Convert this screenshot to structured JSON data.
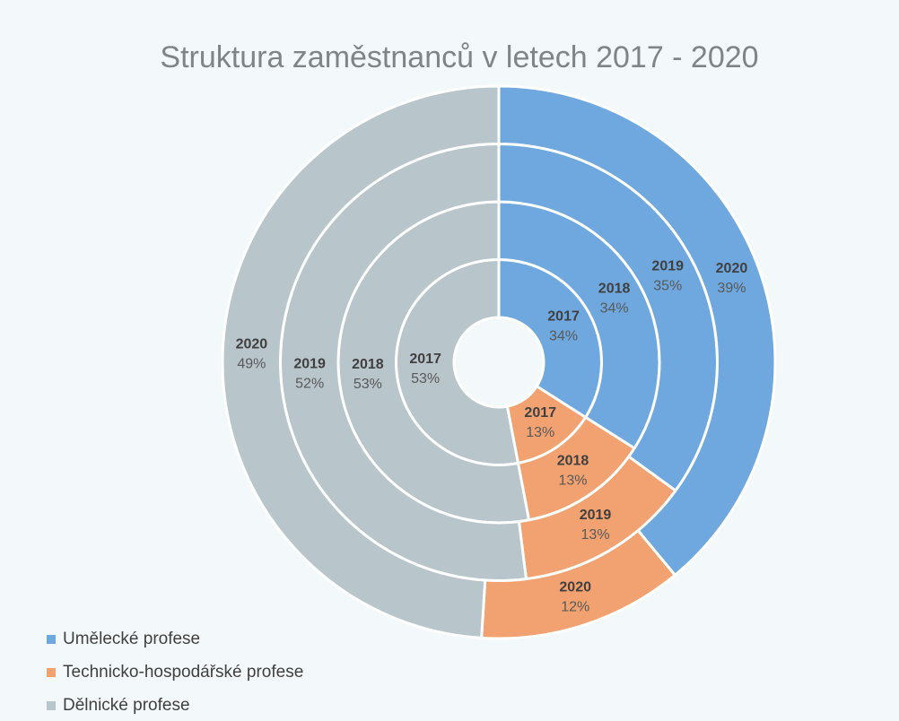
{
  "chart_data": {
    "type": "multi-ring-donut",
    "title": "Struktura zaměstnanců v letech 2017 - 2020",
    "categories": [
      "2017",
      "2018",
      "2019",
      "2020"
    ],
    "series": [
      {
        "name": "Umělecké profese",
        "color": "#6ea8de",
        "values": [
          34,
          34,
          35,
          39
        ],
        "value_labels": [
          "34%",
          "34%",
          "35%",
          "39%"
        ]
      },
      {
        "name": "Technicko-hospodářské profese",
        "color": "#f2a270",
        "values": [
          13,
          13,
          13,
          12
        ],
        "value_labels": [
          "13%",
          "13%",
          "13%",
          "12%"
        ]
      },
      {
        "name": "Dělnické profese",
        "color": "#b8c5cb",
        "values": [
          53,
          53,
          52,
          49
        ],
        "value_labels": [
          "53%",
          "53%",
          "52%",
          "49%"
        ]
      }
    ],
    "legend": "bottom-left"
  }
}
